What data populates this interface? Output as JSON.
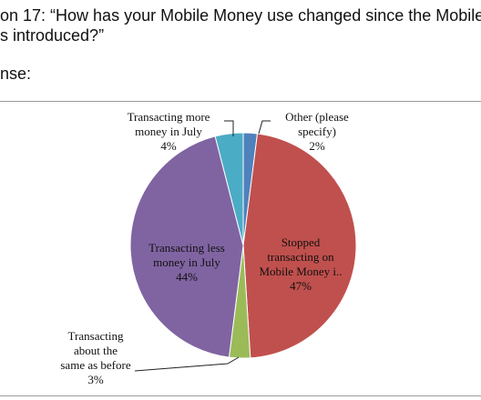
{
  "question": {
    "line1": "on 17: “How has your Mobile Money use changed since the Mobile",
    "line2": "s introduced?”"
  },
  "response_label": "nse:",
  "chart_data": {
    "type": "pie",
    "slices": [
      {
        "label_lines": [
          "Other (please",
          "specify)",
          "2%"
        ],
        "value": 2,
        "color": "#4f81bd"
      },
      {
        "label_lines": [
          "Stopped",
          "transacting on",
          "Mobile Money i..",
          "47%"
        ],
        "value": 47,
        "color": "#c0504d"
      },
      {
        "label_lines": [
          "Transacting",
          "about the",
          "same as before",
          "3%"
        ],
        "value": 3,
        "color": "#9bbb59"
      },
      {
        "label_lines": [
          "Transacting less",
          "money in July",
          "44%"
        ],
        "value": 44,
        "color": "#8064a2"
      },
      {
        "label_lines": [
          "Transacting more",
          "money in July",
          "4%"
        ],
        "value": 4,
        "color": "#4bacc6"
      }
    ]
  }
}
